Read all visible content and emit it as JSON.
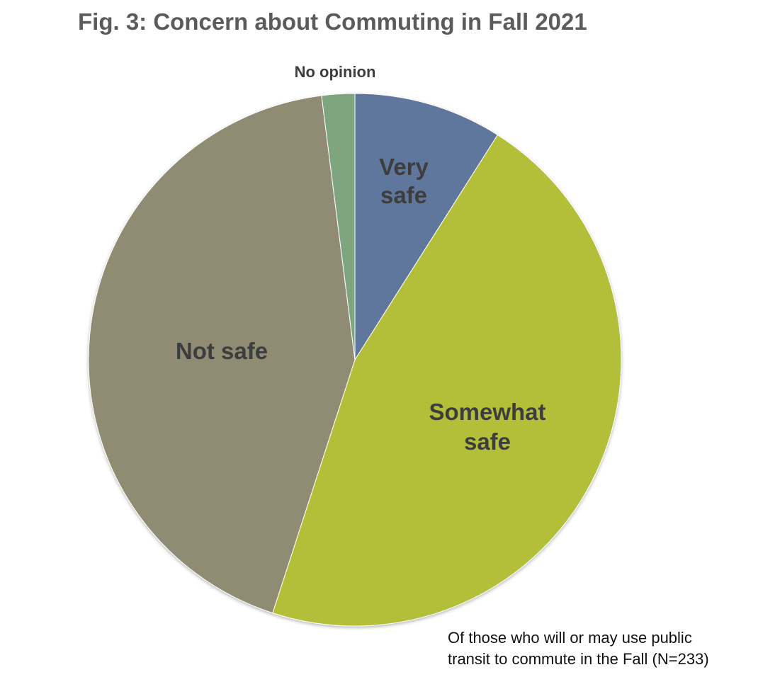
{
  "chart_data": {
    "type": "pie",
    "title": "Fig. 3: Concern about Commuting in Fall 2021",
    "note_lines": [
      "Of those who will or may use public",
      "transit to commute in the Fall (N=233)"
    ],
    "slices": [
      {
        "label_lines": [
          "Very",
          "safe"
        ],
        "value": 9,
        "color": "#5f779c"
      },
      {
        "label_lines": [
          "Somewhat",
          "safe"
        ],
        "value": 46,
        "color": "#b3bf37"
      },
      {
        "label_lines": [
          "Not safe"
        ],
        "value": 43,
        "color": "#8f8c73"
      },
      {
        "label_lines": [
          "No opinion"
        ],
        "value": 2,
        "color": "#7fa57f"
      }
    ]
  }
}
